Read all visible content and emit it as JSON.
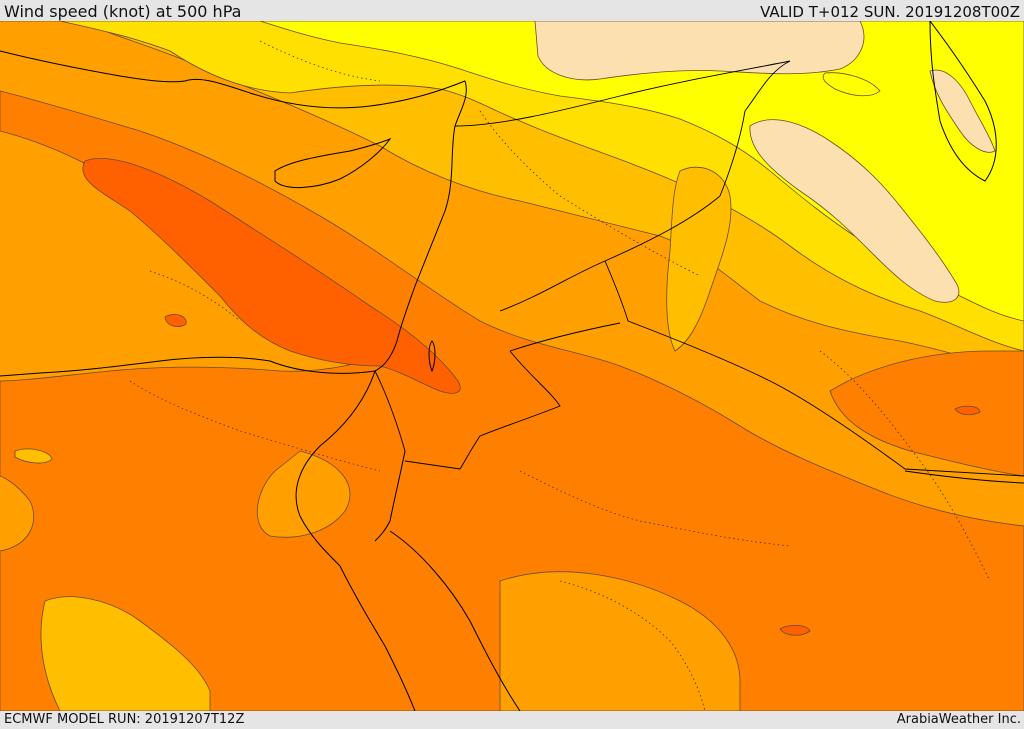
{
  "header": {
    "title": "Wind speed (knot) at 500 hPa",
    "valid": "VALID T+012 SUN. 20191208T00Z"
  },
  "footer": {
    "model_run": "ECMWF MODEL RUN: 20191207T12Z",
    "credit": "ArabiaWeather Inc."
  },
  "map": {
    "palette": {
      "band_1": "#fde0b0",
      "band_2": "#ffff00",
      "band_3": "#ffe000",
      "band_4": "#ffbf00",
      "band_5": "#ff9f00",
      "band_6": "#ff8000",
      "band_7": "#ff6000",
      "contour": "#6b4a2e",
      "coast": "#000000"
    }
  }
}
